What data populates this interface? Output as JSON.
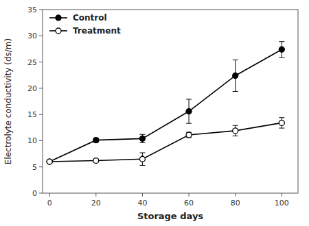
{
  "chart_data": {
    "type": "line",
    "xlabel": "Storage days",
    "ylabel": "Electrolyte conductivity (ds/m)",
    "x": [
      0,
      20,
      40,
      60,
      80,
      100
    ],
    "series": [
      {
        "name": "Control",
        "color": "#000000",
        "marker": "circle",
        "values": [
          6.0,
          10.1,
          10.4,
          15.6,
          22.4,
          27.4
        ],
        "yerr": [
          0.3,
          0.4,
          0.8,
          2.3,
          3.0,
          1.5
        ]
      },
      {
        "name": "Treatment",
        "color": "#000000",
        "marker": "open-circle",
        "values": [
          6.0,
          6.2,
          6.5,
          11.1,
          11.9,
          13.4
        ],
        "yerr": [
          0.2,
          0.3,
          1.2,
          0.5,
          1.0,
          1.0
        ]
      }
    ],
    "xlim": [
      -3,
      107
    ],
    "ylim": [
      0,
      35
    ],
    "xticks": [
      0,
      20,
      40,
      60,
      80,
      100
    ],
    "yticks": [
      0,
      5,
      10,
      15,
      20,
      25,
      30,
      35
    ],
    "grid": false,
    "legend": "upper-left"
  }
}
